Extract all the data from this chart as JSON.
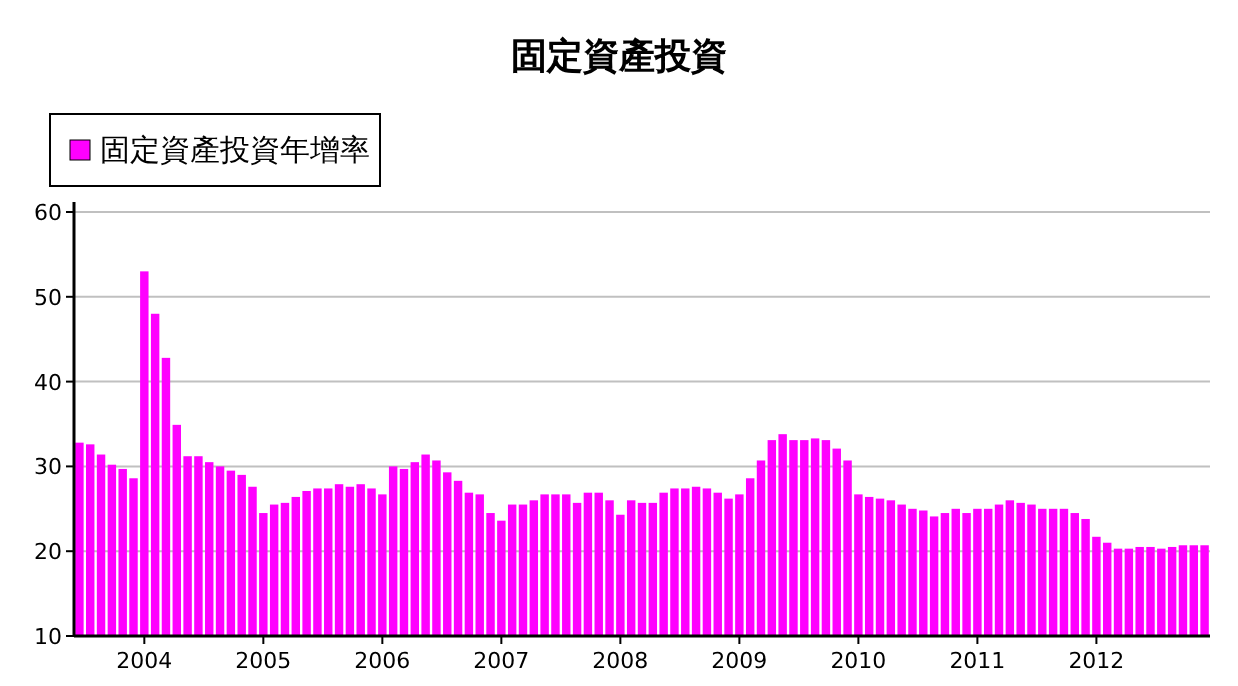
{
  "chart_data": {
    "type": "bar",
    "title": "固定資產投資",
    "categories": [
      null,
      null,
      null,
      null,
      null,
      null,
      "2004",
      null,
      null,
      null,
      null,
      null,
      null,
      null,
      null,
      null,
      null,
      "2005",
      null,
      null,
      null,
      null,
      null,
      null,
      null,
      null,
      null,
      null,
      "2006",
      null,
      null,
      null,
      null,
      null,
      null,
      null,
      null,
      null,
      null,
      "2007",
      null,
      null,
      null,
      null,
      null,
      null,
      null,
      null,
      null,
      null,
      "2008",
      null,
      null,
      null,
      null,
      null,
      null,
      null,
      null,
      null,
      null,
      "2009",
      null,
      null,
      null,
      null,
      null,
      null,
      null,
      null,
      null,
      null,
      "2010",
      null,
      null,
      null,
      null,
      null,
      null,
      null,
      null,
      null,
      null,
      "2011",
      null,
      null,
      null,
      null,
      null,
      null,
      null,
      null,
      null,
      null,
      "2012",
      null,
      null,
      null,
      null,
      null,
      null,
      null,
      null,
      null,
      null
    ],
    "series": [
      {
        "name": "固定資產投資年增率",
        "color": "#ff00ff",
        "values": [
          32.8,
          32.6,
          31.4,
          30.2,
          29.7,
          28.6,
          53.0,
          48.0,
          42.8,
          34.9,
          31.2,
          31.2,
          30.5,
          30.0,
          29.5,
          29.0,
          27.6,
          24.5,
          25.5,
          25.7,
          26.4,
          27.1,
          27.4,
          27.4,
          27.9,
          27.6,
          27.9,
          27.4,
          26.7,
          30.0,
          29.7,
          30.5,
          31.4,
          30.7,
          29.3,
          28.3,
          26.9,
          26.7,
          24.5,
          23.6,
          25.5,
          25.5,
          26.0,
          26.7,
          26.7,
          26.7,
          25.7,
          26.9,
          26.9,
          26.0,
          24.3,
          26.0,
          25.7,
          25.7,
          26.9,
          27.4,
          27.4,
          27.6,
          27.4,
          26.9,
          26.2,
          26.7,
          28.6,
          30.7,
          33.1,
          33.8,
          33.1,
          33.1,
          33.3,
          33.1,
          32.1,
          30.7,
          26.7,
          26.4,
          26.2,
          26.0,
          25.5,
          25.0,
          24.8,
          24.1,
          24.5,
          25.0,
          24.5,
          25.0,
          25.0,
          25.5,
          26.0,
          25.7,
          25.5,
          25.0,
          25.0,
          25.0,
          24.5,
          23.8,
          21.7,
          21.0,
          20.3,
          20.3,
          20.5,
          20.5,
          20.3,
          20.5,
          20.7,
          20.7,
          20.7
        ]
      }
    ],
    "ylim": [
      10,
      60
    ],
    "yticks": [
      10,
      20,
      30,
      40,
      50,
      60
    ],
    "grid": "y",
    "legend": "top left"
  }
}
